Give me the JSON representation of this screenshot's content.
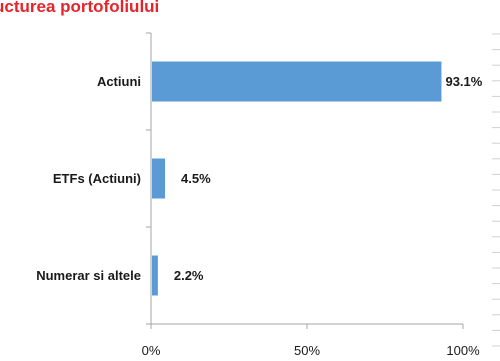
{
  "colors": {
    "title": "#e8232a",
    "bar": "#5b9bd5",
    "axis": "#a6a6a6",
    "text": "#1a1a1a"
  },
  "chart_data": {
    "type": "bar",
    "orientation": "horizontal",
    "title": "ucturea portofoliului",
    "categories": [
      "Actiuni",
      "ETFs (Actiuni)",
      "Numerar si altele"
    ],
    "values": [
      93.1,
      4.5,
      2.2
    ],
    "value_labels": [
      "93.1%",
      "4.5%",
      "2.2%"
    ],
    "xlim": [
      0,
      100
    ],
    "xticks": [
      0,
      50,
      100
    ],
    "xtick_labels": [
      "0%",
      "50%",
      "100%"
    ],
    "grid": false,
    "legend": "none"
  }
}
